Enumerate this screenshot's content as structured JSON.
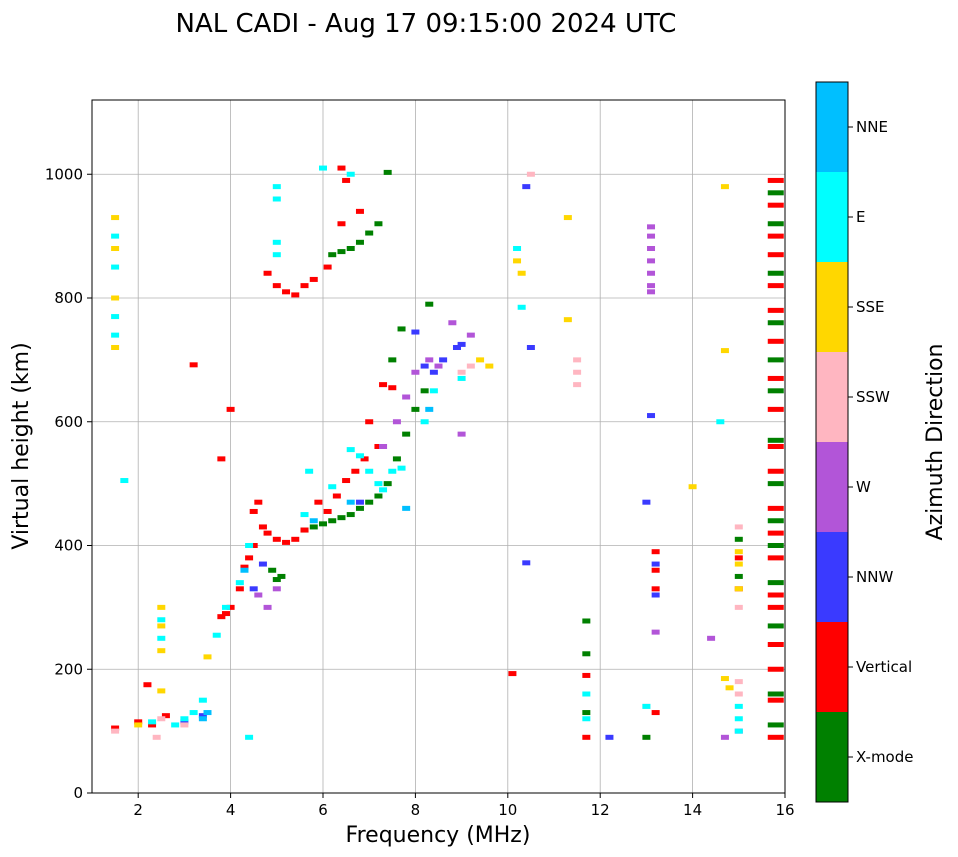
{
  "chart_data": {
    "type": "scatter",
    "title": "NAL CADI - Aug 17 09:15:00 2024 UTC",
    "xlabel": "Frequency (MHz)",
    "ylabel": "Virtual height (km)",
    "xlim": [
      1,
      16
    ],
    "ylim": [
      0,
      1120
    ],
    "x_ticks": [
      2,
      4,
      6,
      8,
      10,
      12,
      14,
      16
    ],
    "y_ticks": [
      0,
      200,
      400,
      600,
      800,
      1000
    ],
    "grid": true,
    "colorbar": {
      "label": "Azimuth Direction",
      "categories": [
        "X-mode",
        "Vertical",
        "NNW",
        "W",
        "SSW",
        "SSE",
        "E",
        "NNE"
      ],
      "colors": [
        "#008000",
        "#ff0000",
        "#3a3aff",
        "#b255d8",
        "#ffb6c1",
        "#ffd700",
        "#00ffff",
        "#00bfff"
      ]
    },
    "series": [
      {
        "name": "X-mode",
        "points": [
          [
            4.9,
            360
          ],
          [
            5.0,
            345
          ],
          [
            5.1,
            350
          ],
          [
            5.6,
            425
          ],
          [
            5.8,
            430
          ],
          [
            6.0,
            435
          ],
          [
            6.2,
            440
          ],
          [
            6.4,
            445
          ],
          [
            6.6,
            450
          ],
          [
            6.8,
            460
          ],
          [
            7.0,
            470
          ],
          [
            7.2,
            480
          ],
          [
            7.4,
            500
          ],
          [
            7.6,
            540
          ],
          [
            7.8,
            580
          ],
          [
            8.0,
            620
          ],
          [
            8.2,
            650
          ],
          [
            7.5,
            700
          ],
          [
            7.7,
            750
          ],
          [
            8.3,
            790
          ],
          [
            6.2,
            870
          ],
          [
            6.4,
            875
          ],
          [
            6.6,
            880
          ],
          [
            6.8,
            890
          ],
          [
            7.0,
            905
          ],
          [
            7.2,
            920
          ],
          [
            7.4,
            1003
          ],
          [
            11.7,
            278
          ],
          [
            11.7,
            225
          ],
          [
            11.7,
            130
          ],
          [
            13.0,
            90
          ],
          [
            15.0,
            410
          ],
          [
            15.0,
            350
          ],
          [
            15.8,
            970
          ],
          [
            15.8,
            920
          ],
          [
            15.8,
            840
          ],
          [
            15.8,
            760
          ],
          [
            15.8,
            700
          ],
          [
            15.8,
            650
          ],
          [
            15.8,
            570
          ],
          [
            15.8,
            500
          ],
          [
            15.8,
            440
          ],
          [
            15.8,
            400
          ],
          [
            15.8,
            340
          ],
          [
            15.8,
            270
          ],
          [
            15.8,
            160
          ],
          [
            15.8,
            110
          ]
        ]
      },
      {
        "name": "Vertical",
        "points": [
          [
            1.5,
            105
          ],
          [
            2.0,
            115
          ],
          [
            2.3,
            110
          ],
          [
            2.6,
            125
          ],
          [
            2.2,
            175
          ],
          [
            3.2,
            692
          ],
          [
            4.0,
            620
          ],
          [
            3.8,
            540
          ],
          [
            3.8,
            285
          ],
          [
            3.9,
            290
          ],
          [
            4.0,
            300
          ],
          [
            4.2,
            330
          ],
          [
            4.3,
            365
          ],
          [
            4.4,
            380
          ],
          [
            4.5,
            400
          ],
          [
            4.5,
            455
          ],
          [
            4.6,
            470
          ],
          [
            4.7,
            430
          ],
          [
            4.8,
            420
          ],
          [
            5.0,
            410
          ],
          [
            5.2,
            405
          ],
          [
            5.4,
            410
          ],
          [
            5.6,
            425
          ],
          [
            5.9,
            470
          ],
          [
            6.1,
            455
          ],
          [
            6.3,
            480
          ],
          [
            6.5,
            505
          ],
          [
            6.7,
            520
          ],
          [
            6.9,
            540
          ],
          [
            7.2,
            560
          ],
          [
            7.0,
            600
          ],
          [
            7.3,
            660
          ],
          [
            7.5,
            655
          ],
          [
            6.4,
            1010
          ],
          [
            6.4,
            920
          ],
          [
            6.5,
            990
          ],
          [
            6.8,
            940
          ],
          [
            6.1,
            850
          ],
          [
            5.8,
            830
          ],
          [
            5.6,
            820
          ],
          [
            5.4,
            805
          ],
          [
            5.2,
            810
          ],
          [
            5.0,
            820
          ],
          [
            4.8,
            840
          ],
          [
            10.1,
            193
          ],
          [
            11.7,
            190
          ],
          [
            11.7,
            90
          ],
          [
            13.2,
            130
          ],
          [
            13.2,
            390
          ],
          [
            13.2,
            360
          ],
          [
            13.2,
            330
          ],
          [
            15.0,
            380
          ],
          [
            15.0,
            330
          ],
          [
            15.8,
            990
          ],
          [
            15.8,
            950
          ],
          [
            15.8,
            900
          ],
          [
            15.8,
            870
          ],
          [
            15.8,
            820
          ],
          [
            15.8,
            780
          ],
          [
            15.8,
            730
          ],
          [
            15.8,
            670
          ],
          [
            15.8,
            620
          ],
          [
            15.8,
            560
          ],
          [
            15.8,
            520
          ],
          [
            15.8,
            460
          ],
          [
            15.8,
            420
          ],
          [
            15.8,
            380
          ],
          [
            15.8,
            320
          ],
          [
            15.8,
            300
          ],
          [
            15.8,
            240
          ],
          [
            15.8,
            200
          ],
          [
            15.8,
            150
          ],
          [
            15.8,
            90
          ]
        ]
      },
      {
        "name": "NNW",
        "points": [
          [
            3.4,
            125
          ],
          [
            3.0,
            115
          ],
          [
            4.5,
            330
          ],
          [
            4.7,
            370
          ],
          [
            6.8,
            470
          ],
          [
            8.2,
            690
          ],
          [
            8.4,
            680
          ],
          [
            8.6,
            700
          ],
          [
            9.0,
            725
          ],
          [
            8.0,
            745
          ],
          [
            8.9,
            720
          ],
          [
            10.4,
            372
          ],
          [
            10.5,
            720
          ],
          [
            10.4,
            980
          ],
          [
            12.2,
            90
          ],
          [
            13.0,
            470
          ],
          [
            13.1,
            610
          ],
          [
            13.2,
            320
          ],
          [
            13.2,
            370
          ]
        ]
      },
      {
        "name": "W",
        "points": [
          [
            4.6,
            320
          ],
          [
            4.8,
            300
          ],
          [
            5.0,
            330
          ],
          [
            7.3,
            560
          ],
          [
            7.6,
            600
          ],
          [
            7.8,
            640
          ],
          [
            8.0,
            680
          ],
          [
            8.3,
            700
          ],
          [
            8.5,
            690
          ],
          [
            9.0,
            580
          ],
          [
            8.8,
            760
          ],
          [
            9.2,
            740
          ],
          [
            13.1,
            915
          ],
          [
            13.1,
            900
          ],
          [
            13.1,
            880
          ],
          [
            13.1,
            860
          ],
          [
            13.1,
            840
          ],
          [
            13.1,
            820
          ],
          [
            13.1,
            810
          ],
          [
            13.2,
            260
          ],
          [
            14.4,
            250
          ],
          [
            14.7,
            90
          ],
          [
            15.0,
            100
          ]
        ]
      },
      {
        "name": "SSW",
        "points": [
          [
            2.5,
            120
          ],
          [
            3.0,
            110
          ],
          [
            1.5,
            100
          ],
          [
            2.4,
            90
          ],
          [
            9.0,
            680
          ],
          [
            9.2,
            690
          ],
          [
            10.5,
            1000
          ],
          [
            11.5,
            700
          ],
          [
            11.5,
            680
          ],
          [
            11.5,
            660
          ],
          [
            13.0,
            140
          ],
          [
            15.0,
            430
          ],
          [
            15.0,
            300
          ],
          [
            15.0,
            180
          ],
          [
            15.0,
            160
          ]
        ]
      },
      {
        "name": "SSE",
        "points": [
          [
            1.5,
            930
          ],
          [
            1.5,
            880
          ],
          [
            1.5,
            800
          ],
          [
            1.5,
            720
          ],
          [
            2.0,
            110
          ],
          [
            2.5,
            300
          ],
          [
            2.5,
            270
          ],
          [
            2.5,
            230
          ],
          [
            2.5,
            165
          ],
          [
            3.5,
            220
          ],
          [
            9.4,
            700
          ],
          [
            9.6,
            690
          ],
          [
            10.2,
            860
          ],
          [
            10.3,
            840
          ],
          [
            11.3,
            930
          ],
          [
            11.3,
            765
          ],
          [
            14.0,
            495
          ],
          [
            14.7,
            980
          ],
          [
            14.7,
            715
          ],
          [
            14.7,
            185
          ],
          [
            14.8,
            170
          ],
          [
            15.0,
            390
          ],
          [
            15.0,
            370
          ],
          [
            15.0,
            330
          ]
        ]
      },
      {
        "name": "E",
        "points": [
          [
            1.5,
            900
          ],
          [
            1.5,
            850
          ],
          [
            1.5,
            770
          ],
          [
            1.5,
            740
          ],
          [
            1.7,
            505
          ],
          [
            2.3,
            115
          ],
          [
            2.8,
            110
          ],
          [
            3.0,
            120
          ],
          [
            3.2,
            130
          ],
          [
            3.4,
            150
          ],
          [
            2.5,
            250
          ],
          [
            2.5,
            280
          ],
          [
            3.7,
            255
          ],
          [
            3.9,
            300
          ],
          [
            4.2,
            340
          ],
          [
            4.4,
            400
          ],
          [
            4.4,
            90
          ],
          [
            5.0,
            980
          ],
          [
            5.0,
            960
          ],
          [
            5.0,
            890
          ],
          [
            5.0,
            870
          ],
          [
            5.6,
            450
          ],
          [
            5.7,
            520
          ],
          [
            6.2,
            495
          ],
          [
            6.6,
            555
          ],
          [
            6.8,
            545
          ],
          [
            7.0,
            520
          ],
          [
            7.2,
            500
          ],
          [
            7.3,
            490
          ],
          [
            7.5,
            520
          ],
          [
            7.7,
            525
          ],
          [
            8.2,
            600
          ],
          [
            8.4,
            650
          ],
          [
            9.0,
            670
          ],
          [
            6.0,
            1010
          ],
          [
            6.6,
            1000
          ],
          [
            10.2,
            880
          ],
          [
            10.3,
            785
          ],
          [
            11.7,
            160
          ],
          [
            11.7,
            120
          ],
          [
            13.0,
            140
          ],
          [
            14.6,
            600
          ],
          [
            15.0,
            140
          ],
          [
            15.0,
            120
          ],
          [
            15.0,
            100
          ]
        ]
      },
      {
        "name": "NNE",
        "points": [
          [
            3.5,
            130
          ],
          [
            3.4,
            120
          ],
          [
            4.3,
            360
          ],
          [
            5.8,
            440
          ],
          [
            7.8,
            460
          ],
          [
            6.6,
            470
          ],
          [
            8.3,
            620
          ]
        ]
      }
    ]
  }
}
